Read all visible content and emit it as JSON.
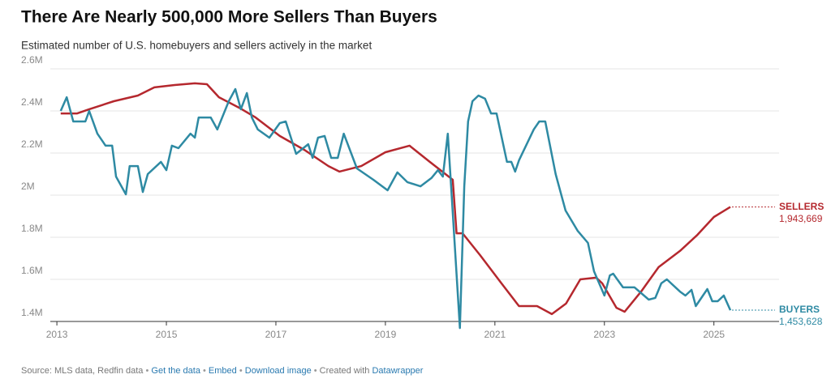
{
  "chart_data": {
    "type": "line",
    "title": "There Are Nearly 500,000 More Sellers Than Buyers",
    "subtitle": "Estimated number of U.S. homebuyers and sellers actively in the market",
    "xlim": [
      2012.88,
      2026.19
    ],
    "xticks": [
      2013,
      2015,
      2017,
      2019,
      2021,
      2023,
      2025
    ],
    "ylim": [
      1400000,
      2600000
    ],
    "yticks": [
      {
        "value": 1400000,
        "label": "1.4M"
      },
      {
        "value": 1600000,
        "label": "1.6M"
      },
      {
        "value": 1800000,
        "label": "1.8M"
      },
      {
        "value": 2000000,
        "label": "2M"
      },
      {
        "value": 2200000,
        "label": "2.2M"
      },
      {
        "value": 2400000,
        "label": "2.4M"
      },
      {
        "value": 2600000,
        "label": "2.6M"
      }
    ],
    "grid": true,
    "series": [
      {
        "name": "SELLERS",
        "color": "#b5282e",
        "end_label": "1,943,669",
        "x": [
          2013.07,
          2013.37,
          2013.59,
          2014.04,
          2014.48,
          2014.78,
          2015.15,
          2015.52,
          2015.74,
          2015.96,
          2016.33,
          2016.63,
          2017.07,
          2017.52,
          2017.96,
          2018.16,
          2018.56,
          2019.0,
          2019.44,
          2019.81,
          2020.23,
          2020.3,
          2020.41,
          2020.73,
          2021.12,
          2021.44,
          2021.77,
          2022.04,
          2022.3,
          2022.56,
          2022.85,
          2022.96,
          2023.22,
          2023.37,
          2023.67,
          2023.99,
          2024.38,
          2024.7,
          2025.0,
          2025.3
        ],
        "values": [
          2388000,
          2388000,
          2408000,
          2446000,
          2473000,
          2512000,
          2523000,
          2531000,
          2527000,
          2465000,
          2415000,
          2369000,
          2281000,
          2215000,
          2138000,
          2112000,
          2138000,
          2204000,
          2235000,
          2158000,
          2073000,
          1819000,
          1819000,
          1715000,
          1581000,
          1473000,
          1473000,
          1435000,
          1485000,
          1600000,
          1608000,
          1581000,
          1465000,
          1446000,
          1542000,
          1658000,
          1735000,
          1812000,
          1896000,
          1943669
        ]
      },
      {
        "name": "BUYERS",
        "color": "#2e8aa3",
        "end_label": "1,453,628",
        "x": [
          2013.07,
          2013.18,
          2013.3,
          2013.52,
          2013.59,
          2013.74,
          2013.89,
          2014.01,
          2014.08,
          2014.26,
          2014.33,
          2014.48,
          2014.57,
          2014.66,
          2014.9,
          2015.0,
          2015.1,
          2015.22,
          2015.44,
          2015.52,
          2015.59,
          2015.81,
          2015.93,
          2016.14,
          2016.26,
          2016.36,
          2016.47,
          2016.56,
          2016.67,
          2016.88,
          2017.07,
          2017.18,
          2017.37,
          2017.59,
          2017.67,
          2017.77,
          2017.89,
          2018.01,
          2018.13,
          2018.24,
          2018.48,
          2018.78,
          2019.04,
          2019.22,
          2019.4,
          2019.64,
          2019.84,
          2019.96,
          2020.05,
          2020.14,
          2020.21,
          2020.36,
          2020.44,
          2020.51,
          2020.59,
          2020.7,
          2020.82,
          2020.93,
          2021.03,
          2021.22,
          2021.3,
          2021.37,
          2021.44,
          2021.71,
          2021.81,
          2021.92,
          2022.11,
          2022.29,
          2022.51,
          2022.7,
          2022.81,
          2023.0,
          2023.1,
          2023.16,
          2023.34,
          2023.55,
          2023.81,
          2023.93,
          2024.04,
          2024.14,
          2024.38,
          2024.48,
          2024.59,
          2024.67,
          2024.88,
          2024.97,
          2025.07,
          2025.18,
          2025.3
        ],
        "values": [
          2400000,
          2465000,
          2350000,
          2350000,
          2400000,
          2292000,
          2235000,
          2235000,
          2088000,
          2004000,
          2138000,
          2138000,
          2015000,
          2100000,
          2158000,
          2119000,
          2235000,
          2223000,
          2292000,
          2273000,
          2369000,
          2369000,
          2312000,
          2446000,
          2504000,
          2408000,
          2485000,
          2369000,
          2312000,
          2273000,
          2342000,
          2350000,
          2196000,
          2242000,
          2177000,
          2273000,
          2281000,
          2177000,
          2177000,
          2292000,
          2127000,
          2073000,
          2023000,
          2108000,
          2062000,
          2042000,
          2081000,
          2119000,
          2088000,
          2292000,
          2004000,
          1369000,
          2042000,
          2350000,
          2446000,
          2473000,
          2458000,
          2388000,
          2388000,
          2158000,
          2158000,
          2112000,
          2165000,
          2312000,
          2350000,
          2350000,
          2100000,
          1927000,
          1831000,
          1773000,
          1638000,
          1523000,
          1619000,
          1627000,
          1562000,
          1562000,
          1504000,
          1512000,
          1581000,
          1600000,
          1542000,
          1523000,
          1550000,
          1473000,
          1554000,
          1496000,
          1496000,
          1523000,
          1453628
        ]
      }
    ],
    "footer": {
      "source": "Source: MLS data, Redfin data",
      "links": [
        "Get the data",
        "Embed",
        "Download image"
      ],
      "credit_prefix": "Created with",
      "credit_link": "Datawrapper"
    }
  }
}
